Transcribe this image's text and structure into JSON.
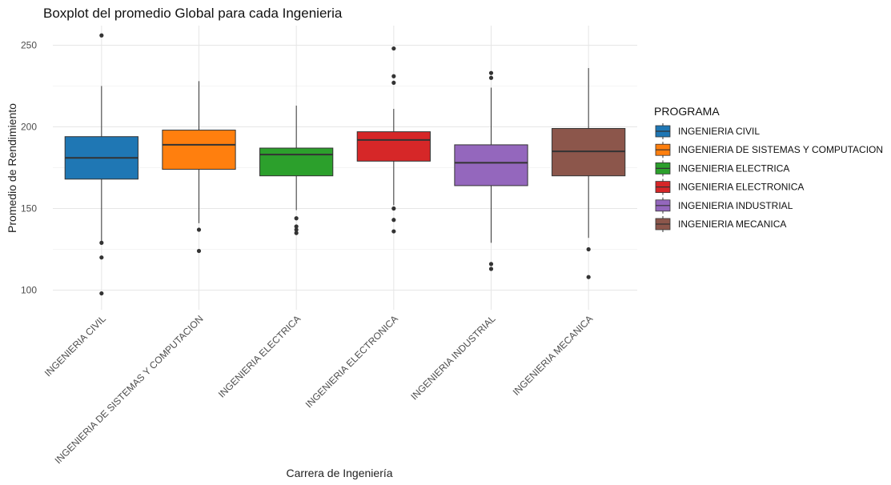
{
  "chart_data": {
    "type": "boxplot",
    "title": "Boxplot del promedio Global para cada Ingenieria",
    "xlabel": "Carrera de Ingeniería",
    "ylabel": "Promedio de Rendimiento",
    "ylim": [
      88,
      262
    ],
    "yticks": [
      100,
      150,
      200,
      250
    ],
    "grid": true,
    "legend": {
      "title": "PROGRAMA",
      "position": "right"
    },
    "categories": [
      "INGENIERIA CIVIL",
      "INGENIERIA DE SISTEMAS Y COMPUTACION",
      "INGENIERIA ELECTRICA",
      "INGENIERIA ELECTRONICA",
      "INGENIERIA INDUSTRIAL",
      "INGENIERIA MECANICA"
    ],
    "series": [
      {
        "name": "INGENIERIA CIVIL",
        "color": "#1f77b4",
        "whisker_low": 130,
        "q1": 168,
        "median": 181,
        "q3": 194,
        "whisker_high": 225,
        "outliers": [
          98,
          120,
          129,
          256
        ]
      },
      {
        "name": "INGENIERIA DE SISTEMAS Y COMPUTACION",
        "color": "#ff7f0e",
        "whisker_low": 141,
        "q1": 174,
        "median": 189,
        "q3": 198,
        "whisker_high": 228,
        "outliers": [
          124,
          137
        ]
      },
      {
        "name": "INGENIERIA ELECTRICA",
        "color": "#2ca02c",
        "whisker_low": 149,
        "q1": 170,
        "median": 183,
        "q3": 187,
        "whisker_high": 213,
        "outliers": [
          135,
          137,
          139,
          144
        ]
      },
      {
        "name": "INGENIERIA ELECTRONICA",
        "color": "#d62728",
        "whisker_low": 152,
        "q1": 179,
        "median": 192,
        "q3": 197,
        "whisker_high": 211,
        "outliers": [
          136,
          143,
          150,
          227,
          231,
          248
        ]
      },
      {
        "name": "INGENIERIA INDUSTRIAL",
        "color": "#9467bd",
        "whisker_low": 129,
        "q1": 164,
        "median": 178,
        "q3": 189,
        "whisker_high": 224,
        "outliers": [
          113,
          116,
          230,
          233
        ]
      },
      {
        "name": "INGENIERIA MECANICA",
        "color": "#8c564b",
        "whisker_low": 132,
        "q1": 170,
        "median": 185,
        "q3": 199,
        "whisker_high": 236,
        "outliers": [
          108,
          125
        ]
      }
    ]
  }
}
